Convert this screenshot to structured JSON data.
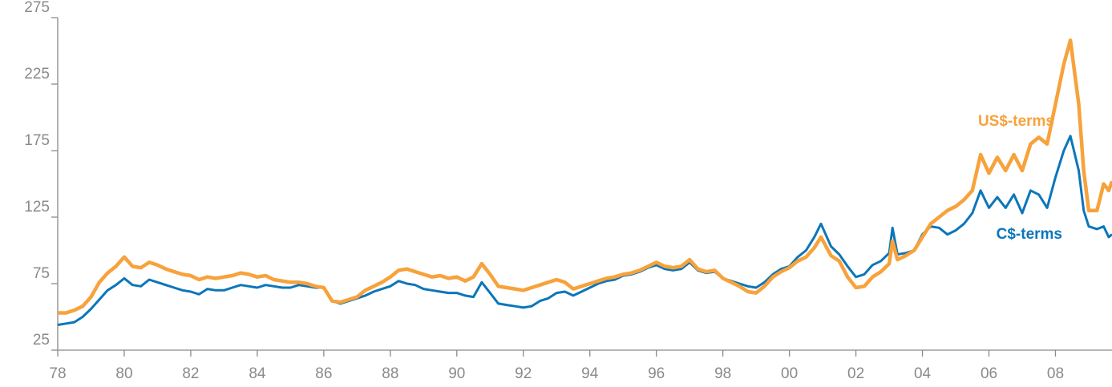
{
  "chart_data": {
    "type": "line",
    "x": [
      1978,
      1978.25,
      1978.5,
      1978.75,
      1979,
      1979.25,
      1979.5,
      1979.75,
      1980,
      1980.25,
      1980.5,
      1980.75,
      1981,
      1981.25,
      1981.5,
      1981.75,
      1982,
      1982.25,
      1982.5,
      1982.75,
      1983,
      1983.25,
      1983.5,
      1983.75,
      1984,
      1984.25,
      1984.5,
      1984.75,
      1985,
      1985.25,
      1985.5,
      1985.75,
      1986,
      1986.25,
      1986.5,
      1986.75,
      1987,
      1987.25,
      1987.5,
      1987.75,
      1988,
      1988.25,
      1988.5,
      1988.75,
      1989,
      1989.25,
      1989.5,
      1989.75,
      1990,
      1990.25,
      1990.5,
      1990.75,
      1991,
      1991.25,
      1991.5,
      1991.75,
      1992,
      1992.25,
      1992.5,
      1992.75,
      1993,
      1993.25,
      1993.5,
      1993.75,
      1994,
      1994.25,
      1994.5,
      1994.75,
      1995,
      1995.25,
      1995.5,
      1995.75,
      1996,
      1996.25,
      1996.5,
      1996.75,
      1997,
      1997.25,
      1997.5,
      1997.75,
      1998,
      1998.25,
      1998.5,
      1998.75,
      1999,
      1999.25,
      1999.5,
      1999.75,
      2000,
      2000.25,
      2000.5,
      2000.75,
      2000.95,
      2001.25,
      2001.5,
      2001.75,
      2002,
      2002.25,
      2002.5,
      2002.75,
      2003,
      2003.1,
      2003.25,
      2003.5,
      2003.75,
      2004,
      2004.25,
      2004.5,
      2004.75,
      2005,
      2005.25,
      2005.5,
      2005.75,
      2006,
      2006.25,
      2006.5,
      2006.75,
      2007,
      2007.25,
      2007.5,
      2007.75,
      2008,
      2008.25,
      2008.45,
      2008.7,
      2008.85,
      2009,
      2009.25,
      2009.45,
      2009.6,
      2009.7
    ],
    "series": [
      {
        "name": "US$-terms",
        "color": "#f7a23b",
        "values": [
          53,
          53,
          55,
          58,
          65,
          76,
          83,
          88,
          95,
          88,
          87,
          91,
          89,
          86,
          84,
          82,
          81,
          78,
          80,
          79,
          80,
          81,
          83,
          82,
          80,
          81,
          78,
          77,
          76,
          76,
          75,
          73,
          72,
          62,
          61,
          63,
          65,
          70,
          73,
          76,
          80,
          85,
          86,
          84,
          82,
          80,
          81,
          79,
          80,
          77,
          80,
          90,
          82,
          73,
          72,
          71,
          70,
          72,
          74,
          76,
          78,
          76,
          71,
          73,
          75,
          77,
          79,
          80,
          82,
          83,
          85,
          88,
          91,
          88,
          87,
          88,
          93,
          86,
          84,
          85,
          79,
          76,
          73,
          69,
          68,
          73,
          80,
          84,
          87,
          92,
          95,
          102,
          110,
          96,
          92,
          80,
          72,
          73,
          80,
          84,
          90,
          107,
          93,
          96,
          100,
          110,
          120,
          125,
          130,
          133,
          138,
          145,
          172,
          158,
          170,
          160,
          172,
          160,
          180,
          185,
          180,
          210,
          240,
          258,
          210,
          160,
          130,
          130,
          150,
          145,
          152
        ]
      },
      {
        "name": "C$-terms",
        "color": "#0b76ba",
        "values": [
          44,
          45,
          46,
          50,
          56,
          63,
          70,
          74,
          79,
          74,
          73,
          78,
          76,
          74,
          72,
          70,
          69,
          67,
          71,
          70,
          70,
          72,
          74,
          73,
          72,
          74,
          73,
          72,
          72,
          74,
          73,
          72,
          72,
          62,
          60,
          62,
          64,
          66,
          69,
          71,
          73,
          77,
          75,
          74,
          71,
          70,
          69,
          68,
          68,
          66,
          65,
          76,
          68,
          60,
          59,
          58,
          57,
          58,
          62,
          64,
          68,
          69,
          66,
          69,
          72,
          75,
          77,
          78,
          81,
          82,
          84,
          87,
          89,
          86,
          85,
          86,
          91,
          85,
          83,
          84,
          79,
          77,
          75,
          73,
          72,
          76,
          82,
          86,
          88,
          95,
          100,
          110,
          120,
          103,
          97,
          88,
          80,
          82,
          89,
          92,
          98,
          117,
          97,
          98,
          100,
          112,
          118,
          117,
          112,
          115,
          120,
          128,
          145,
          132,
          140,
          132,
          142,
          128,
          145,
          142,
          132,
          155,
          175,
          186,
          160,
          130,
          118,
          116,
          118,
          110,
          112
        ]
      }
    ],
    "xlim": [
      1978,
      2009.7
    ],
    "xticks": [
      {
        "value": 1978,
        "label": "78"
      },
      {
        "value": 1980,
        "label": "80"
      },
      {
        "value": 1982,
        "label": "82"
      },
      {
        "value": 1984,
        "label": "84"
      },
      {
        "value": 1986,
        "label": "86"
      },
      {
        "value": 1988,
        "label": "88"
      },
      {
        "value": 1990,
        "label": "90"
      },
      {
        "value": 1992,
        "label": "92"
      },
      {
        "value": 1994,
        "label": "94"
      },
      {
        "value": 1996,
        "label": "96"
      },
      {
        "value": 1998,
        "label": "98"
      },
      {
        "value": 2000,
        "label": "00"
      },
      {
        "value": 2002,
        "label": "02"
      },
      {
        "value": 2004,
        "label": "04"
      },
      {
        "value": 2006,
        "label": "06"
      },
      {
        "value": 2008,
        "label": "08"
      }
    ],
    "ylim": [
      25,
      275
    ],
    "yticks": [
      25,
      75,
      125,
      175,
      225,
      275
    ],
    "grid": false
  }
}
